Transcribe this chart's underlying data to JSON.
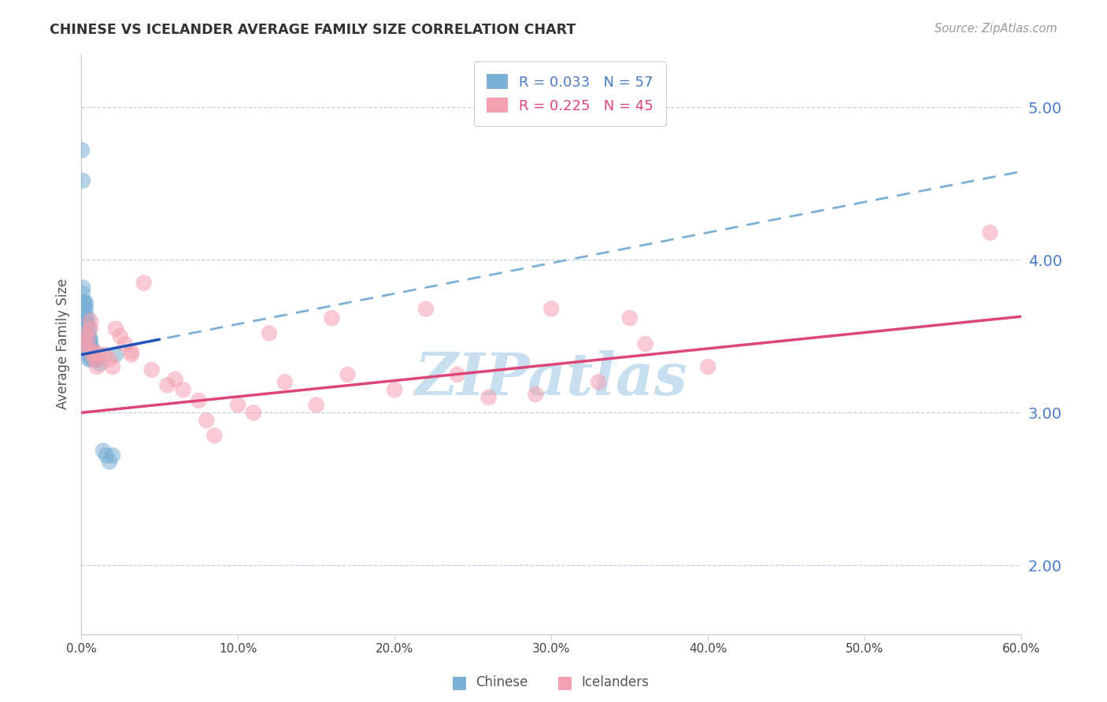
{
  "title": "CHINESE VS ICELANDER AVERAGE FAMILY SIZE CORRELATION CHART",
  "source": "Source: ZipAtlas.com",
  "ylabel": "Average Family Size",
  "right_yticks": [
    2.0,
    3.0,
    4.0,
    5.0
  ],
  "xmin": 0.0,
  "xmax": 0.6,
  "ymin": 1.55,
  "ymax": 5.35,
  "chinese_R": 0.033,
  "chinese_N": 57,
  "icelander_R": 0.225,
  "icelander_N": 45,
  "chinese_color": "#7bafd4",
  "icelander_color": "#f4a0b0",
  "chinese_line_color": "#2255bb",
  "icelander_line_color": "#dd4477",
  "watermark_text": "ZIPatlas",
  "watermark_color": "#c8dff0",
  "chinese_x": [
    0.0005,
    0.001,
    0.001,
    0.001,
    0.001,
    0.001,
    0.0015,
    0.002,
    0.002,
    0.002,
    0.002,
    0.002,
    0.002,
    0.002,
    0.002,
    0.003,
    0.003,
    0.003,
    0.003,
    0.003,
    0.003,
    0.003,
    0.003,
    0.003,
    0.004,
    0.004,
    0.004,
    0.004,
    0.004,
    0.004,
    0.004,
    0.005,
    0.005,
    0.005,
    0.005,
    0.005,
    0.005,
    0.005,
    0.005,
    0.006,
    0.006,
    0.006,
    0.006,
    0.006,
    0.007,
    0.007,
    0.007,
    0.008,
    0.008,
    0.009,
    0.01,
    0.012,
    0.014,
    0.016,
    0.018,
    0.02,
    0.022
  ],
  "chinese_y": [
    4.72,
    4.52,
    3.82,
    3.78,
    3.72,
    3.68,
    3.7,
    3.72,
    3.68,
    3.62,
    3.58,
    3.55,
    3.72,
    3.65,
    3.6,
    3.72,
    3.68,
    3.62,
    3.58,
    3.55,
    3.5,
    3.48,
    3.55,
    3.6,
    3.62,
    3.58,
    3.55,
    3.5,
    3.48,
    3.45,
    3.42,
    3.55,
    3.5,
    3.48,
    3.45,
    3.42,
    3.4,
    3.38,
    3.35,
    3.48,
    3.45,
    3.42,
    3.38,
    3.35,
    3.42,
    3.4,
    3.38,
    3.38,
    3.35,
    3.35,
    3.35,
    3.32,
    2.75,
    2.72,
    2.68,
    2.72,
    3.38
  ],
  "icelander_x": [
    0.002,
    0.003,
    0.004,
    0.005,
    0.006,
    0.006,
    0.007,
    0.008,
    0.009,
    0.01,
    0.012,
    0.015,
    0.018,
    0.02,
    0.022,
    0.025,
    0.028,
    0.032,
    0.032,
    0.04,
    0.045,
    0.055,
    0.06,
    0.065,
    0.075,
    0.08,
    0.085,
    0.1,
    0.11,
    0.13,
    0.15,
    0.17,
    0.2,
    0.24,
    0.26,
    0.29,
    0.33,
    0.36,
    0.58,
    0.12,
    0.16,
    0.22,
    0.3,
    0.4,
    0.35
  ],
  "icelander_y": [
    3.45,
    3.52,
    3.48,
    3.42,
    3.55,
    3.6,
    3.38,
    3.4,
    3.35,
    3.3,
    3.38,
    3.38,
    3.35,
    3.3,
    3.55,
    3.5,
    3.45,
    3.4,
    3.38,
    3.85,
    3.28,
    3.18,
    3.22,
    3.15,
    3.08,
    2.95,
    2.85,
    3.05,
    3.0,
    3.2,
    3.05,
    3.25,
    3.15,
    3.25,
    3.1,
    3.12,
    3.2,
    3.45,
    4.18,
    3.52,
    3.62,
    3.68,
    3.68,
    3.3,
    3.62
  ],
  "solid_line_x_end": 0.05,
  "xtick_count": 7
}
